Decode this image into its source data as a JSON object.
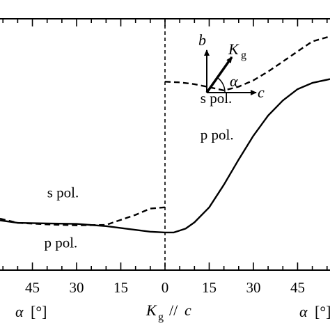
{
  "chart_data": {
    "type": "line",
    "title": "",
    "xlabel_left": "α [°]",
    "xlabel_center": "K",
    "xlabel_center_sub": "g",
    "xlabel_center_suffix": " // c",
    "xlabel_right": "α [°]",
    "x_ticks": [
      {
        "value": -45,
        "label": "45"
      },
      {
        "value": -30,
        "label": "30"
      },
      {
        "value": -15,
        "label": "15"
      },
      {
        "value": 0,
        "label": "0"
      },
      {
        "value": 15,
        "label": "15"
      },
      {
        "value": 30,
        "label": "30"
      },
      {
        "value": 45,
        "label": "45"
      }
    ],
    "xlim": [
      -56,
      56
    ],
    "ylim": [
      0,
      1
    ],
    "series": [
      {
        "name": "s pol.",
        "style": "dashed",
        "side": "left",
        "x": [
          -56,
          -50,
          -40,
          -30,
          -20,
          -10,
          -5,
          0
        ],
        "y": [
          0.205,
          0.188,
          0.182,
          0.178,
          0.18,
          0.22,
          0.245,
          0.25
        ]
      },
      {
        "name": "p pol.",
        "style": "solid",
        "side": "left",
        "x": [
          -56,
          -50,
          -40,
          -30,
          -20,
          -10,
          -5,
          0
        ],
        "y": [
          0.198,
          0.188,
          0.186,
          0.184,
          0.175,
          0.16,
          0.153,
          0.15
        ]
      },
      {
        "name": "s pol.",
        "style": "dashed",
        "side": "right",
        "x": [
          0,
          5,
          10,
          15,
          20,
          25,
          30,
          35,
          40,
          45,
          50,
          56
        ],
        "y": [
          0.75,
          0.747,
          0.74,
          0.728,
          0.715,
          0.73,
          0.755,
          0.79,
          0.83,
          0.87,
          0.91,
          0.93
        ]
      },
      {
        "name": "p pol.",
        "style": "solid",
        "side": "right",
        "x": [
          0,
          3,
          7,
          10,
          15,
          20,
          25,
          30,
          35,
          40,
          45,
          50,
          56
        ],
        "y": [
          0.15,
          0.15,
          0.165,
          0.19,
          0.25,
          0.34,
          0.44,
          0.535,
          0.615,
          0.675,
          0.72,
          0.745,
          0.76
        ]
      }
    ],
    "annotations": [
      {
        "text": "s pol.",
        "x": -40,
        "y": 0.29
      },
      {
        "text": "p pol.",
        "x": -41,
        "y": 0.09
      },
      {
        "text": "s pol.",
        "x": 12,
        "y": 0.665
      },
      {
        "text": "p pol.",
        "x": 12,
        "y": 0.52
      }
    ],
    "inset": {
      "axis_b": "b",
      "axis_c": "c",
      "vector": "K",
      "vector_sub": "g",
      "angle": "α"
    },
    "legend": "none",
    "grid": false
  }
}
